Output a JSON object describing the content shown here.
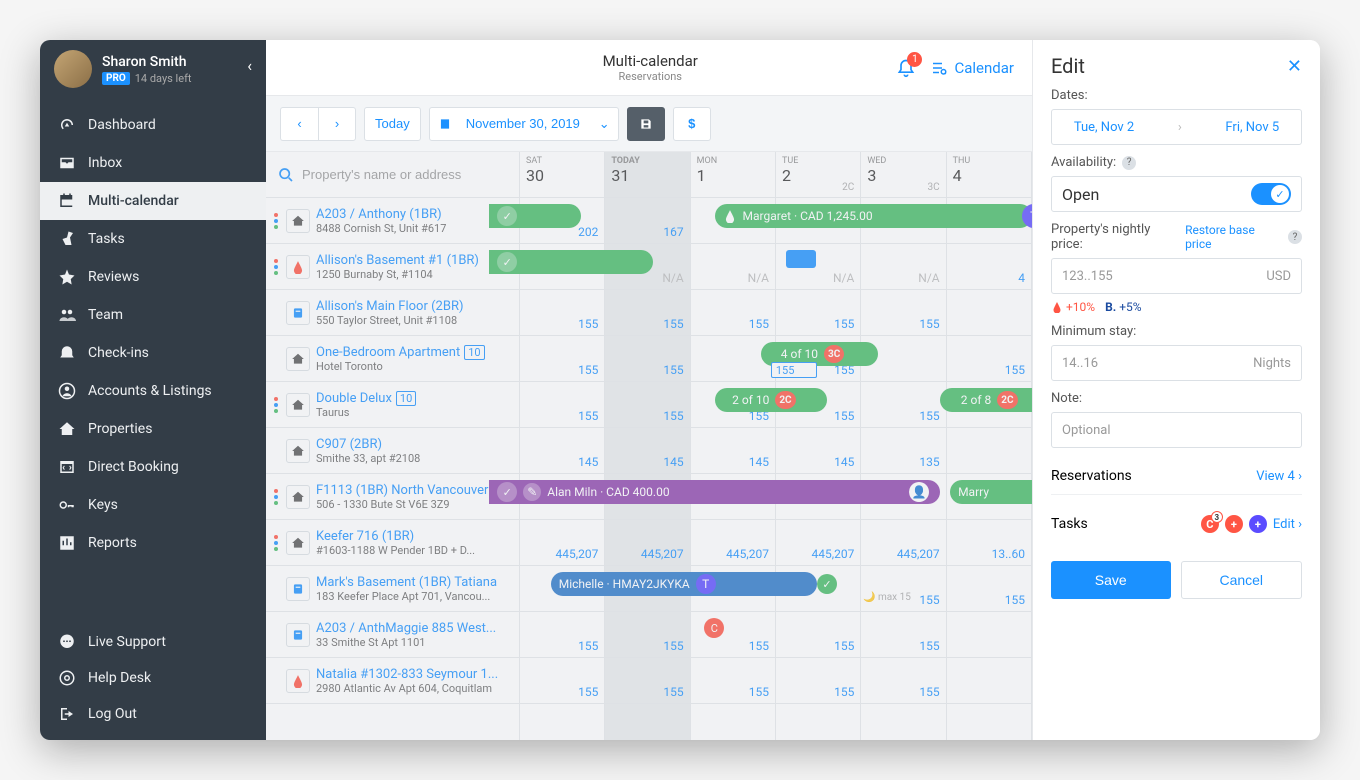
{
  "user": {
    "name": "Sharon Smith",
    "badge": "PRO",
    "daysLeft": "14 days left"
  },
  "sidebar": {
    "items": [
      {
        "label": "Dashboard"
      },
      {
        "label": "Inbox"
      },
      {
        "label": "Multi-calendar"
      },
      {
        "label": "Tasks"
      },
      {
        "label": "Reviews"
      },
      {
        "label": "Team"
      },
      {
        "label": "Check-ins"
      },
      {
        "label": "Accounts & Listings"
      },
      {
        "label": "Properties"
      },
      {
        "label": "Direct Booking"
      },
      {
        "label": "Keys"
      },
      {
        "label": "Reports"
      }
    ],
    "bottom": [
      {
        "label": "Live Support"
      },
      {
        "label": "Help Desk"
      },
      {
        "label": "Log Out"
      }
    ]
  },
  "header": {
    "title": "Multi-calendar",
    "subtitle": "Reservations",
    "calendarLink": "Calendar",
    "notifCount": "1"
  },
  "toolbar": {
    "today": "Today",
    "date": "November 30, 2019"
  },
  "search": {
    "placeholder": "Property's name or address"
  },
  "days": [
    {
      "name": "SAT",
      "num": "30",
      "cap": ""
    },
    {
      "name": "TODAY",
      "num": "31",
      "cap": ""
    },
    {
      "name": "MON",
      "num": "1",
      "cap": ""
    },
    {
      "name": "TUE",
      "num": "2",
      "cap": "2C"
    },
    {
      "name": "WED",
      "num": "3",
      "cap": "3C"
    },
    {
      "name": "THU",
      "num": "4",
      "cap": ""
    }
  ],
  "props": [
    {
      "name": "A203 / Anthony (1BR)",
      "addr": "8488 Cornish St, Unit #617",
      "icon": "home",
      "count": "",
      "prices": [
        "202",
        "167",
        "",
        "",
        "",
        ""
      ]
    },
    {
      "name": "Allison's Basement #1 (1BR)",
      "addr": "1250 Burnaby St, #1104",
      "icon": "airbnb",
      "count": "",
      "prices": [
        "",
        "N/A",
        "N/A",
        "N/A",
        "N/A",
        "4"
      ]
    },
    {
      "name": "Allison's Main Floor (2BR)",
      "addr": "550 Taylor Street, Unit #1108",
      "icon": "book",
      "count": "",
      "prices": [
        "155",
        "155",
        "155",
        "155",
        "155",
        ""
      ]
    },
    {
      "name": "One-Bedroom Apartment",
      "addr": "Hotel Toronto",
      "icon": "home",
      "count": "10",
      "prices": [
        "155",
        "155",
        "",
        "155",
        "",
        "155"
      ]
    },
    {
      "name": "Double Delux",
      "addr": "Taurus",
      "icon": "home",
      "count": "10",
      "prices": [
        "155",
        "155",
        "155",
        "155",
        "155",
        ""
      ]
    },
    {
      "name": "C907 (2BR)",
      "addr": "Smithe 33, apt #2108",
      "icon": "home",
      "count": "",
      "prices": [
        "145",
        "145",
        "145",
        "145",
        "135",
        ""
      ]
    },
    {
      "name": "F1113 (1BR) North Vancouver",
      "addr": "506 - 1330 Bute St V6E 3Z9",
      "icon": "home",
      "count": "",
      "prices": [
        "",
        "",
        "",
        "",
        "",
        ""
      ]
    },
    {
      "name": "Keefer 716 (1BR)",
      "addr": "#1603-1188 W Pender 1BD + D...",
      "icon": "home",
      "count": "",
      "prices": [
        "445,207",
        "445,207",
        "445,207",
        "445,207",
        "445,207",
        "13..60"
      ]
    },
    {
      "name": "Mark's Basement (1BR) Tatiana",
      "addr": "183 Keefer Place Apt 701, Vancou...",
      "icon": "book",
      "count": "",
      "prices": [
        "",
        "",
        "",
        "",
        "155",
        "155"
      ]
    },
    {
      "name": "A203 / AnthMaggie 885 West...",
      "addr": "33 Smithe St Apt 1101",
      "icon": "book",
      "count": "",
      "prices": [
        "155",
        "155",
        "155",
        "155",
        "155",
        ""
      ]
    },
    {
      "name": "Natalia #1302-833 Seymour 1...",
      "addr": "2980 Atlantic Av Apt 604, Coquitlam",
      "icon": "airbnb",
      "count": "",
      "prices": [
        "155",
        "155",
        "155",
        "155",
        "155",
        ""
      ]
    }
  ],
  "events": {
    "margaret": "Margaret · CAD 1,245.00",
    "alan": "Alan Miln · CAD 400.00",
    "marry": "Marry",
    "michelle": "Michelle · HMAY2JKYKA",
    "pill410": "4 of 10",
    "pill410b": "3C",
    "pill210": "2 of 10",
    "pill210b": "2C",
    "pill28": "2 of 8",
    "pill28b": "2C",
    "cap410": "155",
    "max15": "max 15"
  },
  "edit": {
    "title": "Edit",
    "datesLabel": "Dates:",
    "dateFrom": "Tue, Nov 2",
    "dateTo": "Fri, Nov 5",
    "availLabel": "Availability:",
    "availValue": "Open",
    "priceLabel": "Property's nightly price:",
    "restoreLink": "Restore base price",
    "pricePlaceholder": "123..155",
    "priceUnit": "USD",
    "hintA": "+10%",
    "hintB": "+5%",
    "minStayLabel": "Minimum stay:",
    "minStayPlaceholder": "14..16",
    "minStayUnit": "Nights",
    "noteLabel": "Note:",
    "notePlaceholder": "Optional",
    "reservations": "Reservations",
    "viewLink": "View 4",
    "tasks": "Tasks",
    "taskCount": "3",
    "editLink": "Edit",
    "save": "Save",
    "cancel": "Cancel"
  }
}
